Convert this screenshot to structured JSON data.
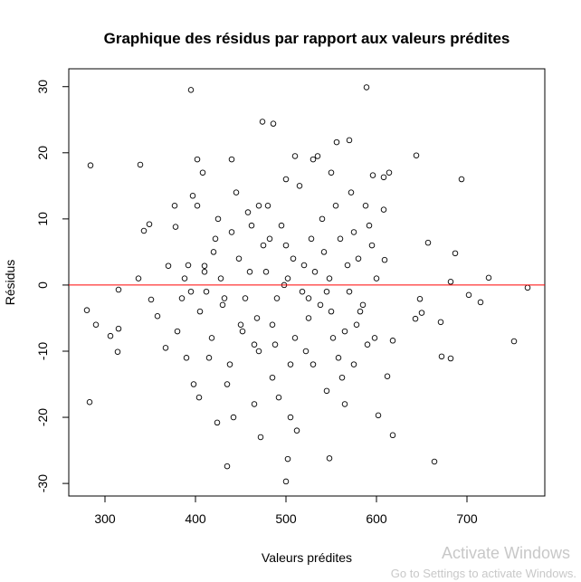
{
  "chart_data": {
    "type": "scatter",
    "title": "Graphique des résidus par rapport aux valeurs prédites",
    "x_label": "Valeurs prédites",
    "y_label": "Résidus",
    "x": [
      284,
      283,
      280,
      290,
      306,
      314,
      315,
      315,
      339,
      343,
      349,
      337,
      351,
      358,
      367,
      370,
      377,
      378,
      395,
      397,
      402,
      408,
      410,
      424,
      435,
      474,
      486,
      589,
      500,
      502,
      548,
      556,
      570,
      644,
      694,
      724,
      702,
      715,
      752,
      767,
      682,
      672,
      664,
      671,
      657,
      687,
      682,
      618,
      602,
      612,
      618,
      609,
      608,
      614,
      608,
      596,
      650,
      648,
      643,
      420,
      430,
      440,
      450,
      460,
      470,
      480,
      490,
      500,
      510,
      520,
      530,
      540,
      550,
      560,
      570,
      580,
      590,
      600,
      415,
      425,
      435,
      445,
      455,
      465,
      475,
      485,
      495,
      505,
      515,
      525,
      535,
      545,
      555,
      565,
      575,
      585,
      595,
      405,
      410,
      418,
      428,
      438,
      448,
      458,
      468,
      478,
      488,
      498,
      508,
      518,
      528,
      538,
      548,
      558,
      568,
      578,
      588,
      598,
      402,
      412,
      422,
      432,
      442,
      452,
      462,
      472,
      482,
      492,
      502,
      512,
      522,
      532,
      542,
      552,
      562,
      572,
      582,
      592,
      440,
      470,
      500,
      510,
      530,
      550,
      465,
      485,
      505,
      525,
      545,
      565,
      575,
      395,
      390,
      398,
      404,
      392,
      388,
      380,
      385
    ],
    "values": [
      18.1,
      -17.7,
      -3.8,
      -6,
      -7.7,
      -10.1,
      -0.7,
      -6.6,
      18.2,
      8.2,
      9.2,
      1,
      -2.2,
      -4.7,
      -9.5,
      2.9,
      12,
      8.8,
      29.5,
      13.5,
      19,
      17,
      2.9,
      -20.8,
      -27.4,
      24.7,
      24.4,
      29.9,
      -29.7,
      -26.3,
      -26.2,
      21.6,
      21.9,
      19.6,
      16,
      1.1,
      -1.5,
      -2.6,
      -8.5,
      -0.4,
      -11.1,
      -10.8,
      -26.7,
      -5.6,
      6.4,
      4.8,
      0.5,
      -22.7,
      -19.7,
      -13.8,
      -8.4,
      3.8,
      11.4,
      17,
      16.3,
      16.6,
      -4.2,
      -2.1,
      -5.1,
      5,
      -3,
      8,
      -6,
      2,
      -10,
      12,
      -2,
      6,
      -8,
      3,
      -12,
      10,
      -4,
      7,
      -1,
      4,
      -9,
      1,
      -11,
      10,
      -15,
      14,
      -2,
      -18,
      6,
      -14,
      9,
      -20,
      15,
      -5,
      19.5,
      -16,
      12,
      -7,
      8,
      -3,
      6,
      -4,
      2,
      -8,
      1,
      -12,
      4,
      11,
      -5,
      2,
      -9,
      0,
      4,
      -1,
      7,
      -3,
      1,
      -11,
      3,
      -6,
      12,
      -8,
      12,
      -1,
      7,
      -2,
      -20,
      -7,
      9,
      -23,
      7,
      -17,
      1,
      -22,
      -10,
      2,
      5,
      -8,
      -14,
      14,
      -4,
      9,
      19,
      12,
      16,
      19.5,
      19,
      17,
      -9,
      -6,
      -12,
      -2,
      -1,
      -18,
      -12,
      -1,
      -11,
      -15,
      -17,
      3,
      1,
      -7,
      -2
    ],
    "xlim": [
      260,
      786
    ],
    "ylim": [
      -31.9,
      32.7
    ],
    "xticks": [
      300,
      400,
      500,
      600,
      700
    ],
    "yticks": [
      -30,
      -20,
      -10,
      0,
      10,
      20,
      30
    ],
    "color": "#000000",
    "hline": 0,
    "hline_color": "#ff0000"
  },
  "watermark": {
    "title": "Activate Windows",
    "subtitle": "Go to Settings to activate Windows."
  }
}
